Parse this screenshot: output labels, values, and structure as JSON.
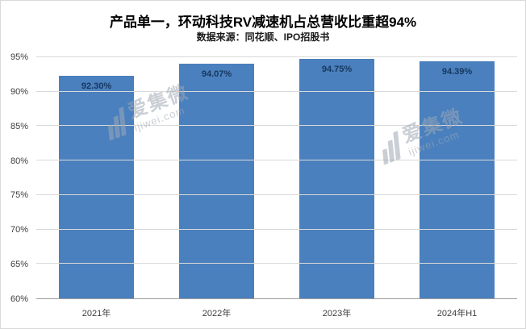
{
  "title": "产品单一，环动科技RV减速机占总营收比重超94%",
  "subtitle": "数据来源：同花顺、IPO招股书",
  "watermark": {
    "name": "爱集微",
    "domain": "ijiwei.com"
  },
  "chart_data": {
    "type": "bar",
    "title": "产品单一，环动科技RV减速机占总营收比重超94%",
    "subtitle": "数据来源：同花顺、IPO招股书",
    "categories": [
      "2021年",
      "2022年",
      "2023年",
      "2024年H1"
    ],
    "values": [
      92.3,
      94.07,
      94.75,
      94.39
    ],
    "data_labels": [
      "92.30%",
      "94.07%",
      "94.75%",
      "94.39%"
    ],
    "ylim": [
      60,
      95
    ],
    "ytick_step": 5,
    "ytick_labels": [
      "60%",
      "65%",
      "70%",
      "75%",
      "80%",
      "85%",
      "90%",
      "95%"
    ],
    "xlabel": "",
    "ylabel": "",
    "grid": true,
    "legend": false,
    "bar_color": "#4a80be",
    "label_color": "#17375e"
  }
}
